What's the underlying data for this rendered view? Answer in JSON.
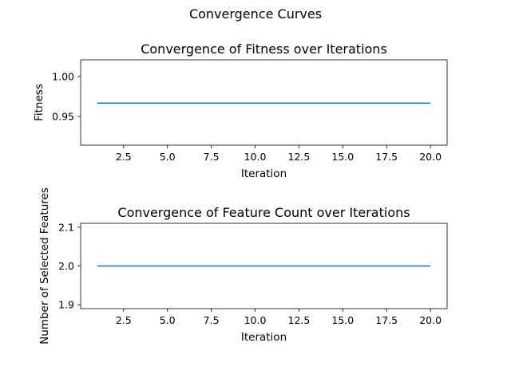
{
  "figure": {
    "suptitle": "Convergence Curves",
    "line_color": "#1f77b4"
  },
  "chart_data": [
    {
      "type": "line",
      "title": "Convergence of Fitness over Iterations",
      "xlabel": "Iteration",
      "ylabel": "Fitness",
      "x": [
        1,
        2,
        3,
        4,
        5,
        6,
        7,
        8,
        9,
        10,
        11,
        12,
        13,
        14,
        15,
        16,
        17,
        18,
        19,
        20
      ],
      "series": [
        {
          "values": [
            0.9667,
            0.9667,
            0.9667,
            0.9667,
            0.9667,
            0.9667,
            0.9667,
            0.9667,
            0.9667,
            0.9667,
            0.9667,
            0.9667,
            0.9667,
            0.9667,
            0.9667,
            0.9667,
            0.9667,
            0.9667,
            0.9667,
            0.9667
          ]
        }
      ],
      "xlim": [
        0.05,
        20.95
      ],
      "ylim": [
        0.914,
        1.021
      ],
      "xticks": [
        2.5,
        5.0,
        7.5,
        10.0,
        12.5,
        15.0,
        17.5,
        20.0
      ],
      "xtick_labels": [
        "2.5",
        "5.0",
        "7.5",
        "10.0",
        "12.5",
        "15.0",
        "17.5",
        "20.0"
      ],
      "yticks": [
        0.95,
        1.0
      ],
      "ytick_labels": [
        "0.95",
        "1.00"
      ],
      "grid": false
    },
    {
      "type": "line",
      "title": "Convergence of Feature Count over Iterations",
      "xlabel": "Iteration",
      "ylabel": "Number of Selected Features",
      "x": [
        1,
        2,
        3,
        4,
        5,
        6,
        7,
        8,
        9,
        10,
        11,
        12,
        13,
        14,
        15,
        16,
        17,
        18,
        19,
        20
      ],
      "series": [
        {
          "values": [
            2,
            2,
            2,
            2,
            2,
            2,
            2,
            2,
            2,
            2,
            2,
            2,
            2,
            2,
            2,
            2,
            2,
            2,
            2,
            2
          ]
        }
      ],
      "xlim": [
        0.05,
        20.95
      ],
      "ylim": [
        1.89,
        2.11
      ],
      "xticks": [
        2.5,
        5.0,
        7.5,
        10.0,
        12.5,
        15.0,
        17.5,
        20.0
      ],
      "xtick_labels": [
        "2.5",
        "5.0",
        "7.5",
        "10.0",
        "12.5",
        "15.0",
        "17.5",
        "20.0"
      ],
      "yticks": [
        1.9,
        2.0,
        2.1
      ],
      "ytick_labels": [
        "1.9",
        "2.0",
        "2.1"
      ],
      "grid": false
    }
  ]
}
